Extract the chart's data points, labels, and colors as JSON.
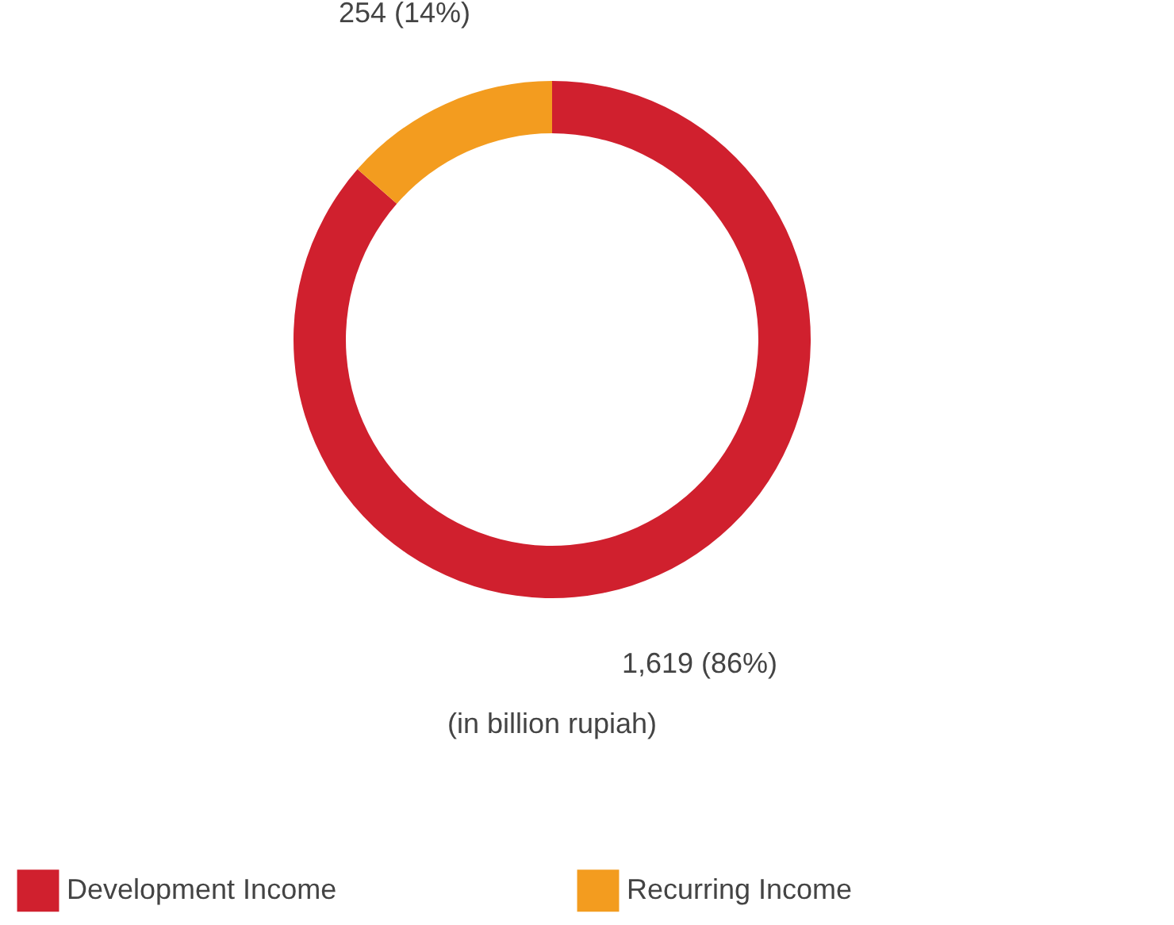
{
  "chart_data": {
    "type": "donut",
    "categories": [
      "Development Income",
      "Recurring Income"
    ],
    "values": [
      1619,
      254
    ],
    "colors": [
      "#d0202e",
      "#f39c1f"
    ],
    "value_labels": [
      "1,619 (86%)",
      "254 (14%)"
    ],
    "annotations": [
      "(in billion rupiah)"
    ],
    "legend": "bottom"
  }
}
